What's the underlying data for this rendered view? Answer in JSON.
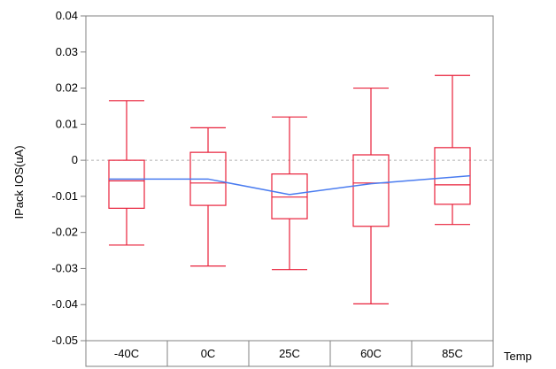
{
  "chart_data": {
    "type": "box",
    "xlabel": "Temp",
    "ylabel": "IPack IOS(uA)",
    "ylim": [
      -0.05,
      0.04
    ],
    "yticks": [
      0.04,
      0.03,
      0.02,
      0.01,
      0,
      -0.01,
      -0.02,
      -0.03,
      -0.04,
      -0.05
    ],
    "ytick_labels": [
      "0.04",
      "0.03",
      "0.02",
      "0.01",
      "0",
      "-0.01",
      "-0.02",
      "-0.03",
      "-0.04",
      "-0.05"
    ],
    "categories": [
      "-40C",
      "0C",
      "25C",
      "60C",
      "85C"
    ],
    "boxes": [
      {
        "category": "-40C",
        "whisker_low": -0.0235,
        "q1": -0.0133,
        "median": -0.0057,
        "q3": 0.0,
        "whisker_high": 0.0165
      },
      {
        "category": "0C",
        "whisker_low": -0.0293,
        "q1": -0.0125,
        "median": -0.0063,
        "q3": 0.0022,
        "whisker_high": 0.009
      },
      {
        "category": "25C",
        "whisker_low": -0.0303,
        "q1": -0.0162,
        "median": -0.0102,
        "q3": -0.0038,
        "whisker_high": 0.012
      },
      {
        "category": "60C",
        "whisker_low": -0.0398,
        "q1": -0.0183,
        "median": -0.0063,
        "q3": 0.0015,
        "whisker_high": 0.02
      },
      {
        "category": "85C",
        "whisker_low": -0.0178,
        "q1": -0.0122,
        "median": -0.0068,
        "q3": 0.0035,
        "whisker_high": 0.0235
      }
    ],
    "mean_line": [
      -0.0052,
      -0.0052,
      -0.0095,
      -0.0065,
      -0.0043
    ],
    "reference_line": 0,
    "colors": {
      "box": "#e8203a",
      "mean_line": "#4a7cf0",
      "reference_line": "#b0b0b0",
      "axis": "#808080"
    }
  }
}
